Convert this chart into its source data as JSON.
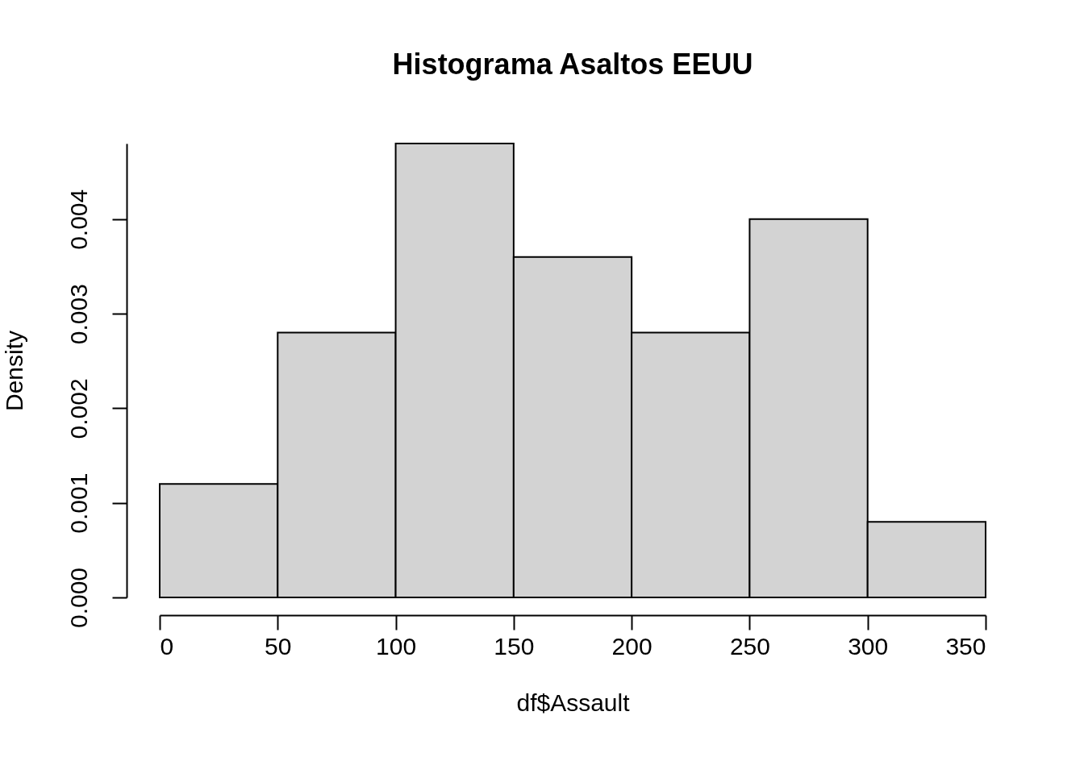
{
  "chart_data": {
    "type": "histogram",
    "title": "Histograma Asaltos EEUU",
    "xlabel": "df$Assault",
    "ylabel": "Density",
    "bins": [
      0,
      50,
      100,
      150,
      200,
      250,
      300,
      350
    ],
    "values": [
      0.0012,
      0.0028,
      0.0048,
      0.0036,
      0.0028,
      0.004,
      0.0008
    ],
    "color": "#d3d3d3",
    "xlim": [
      0,
      350
    ],
    "ylim": [
      0,
      0.0048
    ],
    "xticks": [
      0,
      50,
      100,
      150,
      200,
      250,
      300,
      350
    ],
    "yticks": [
      {
        "value": 0,
        "label": "0.000"
      },
      {
        "value": 0.001,
        "label": "0.001"
      },
      {
        "value": 0.002,
        "label": "0.002"
      },
      {
        "value": 0.003,
        "label": "0.003"
      },
      {
        "value": 0.004,
        "label": "0.004"
      }
    ],
    "grid": false
  }
}
